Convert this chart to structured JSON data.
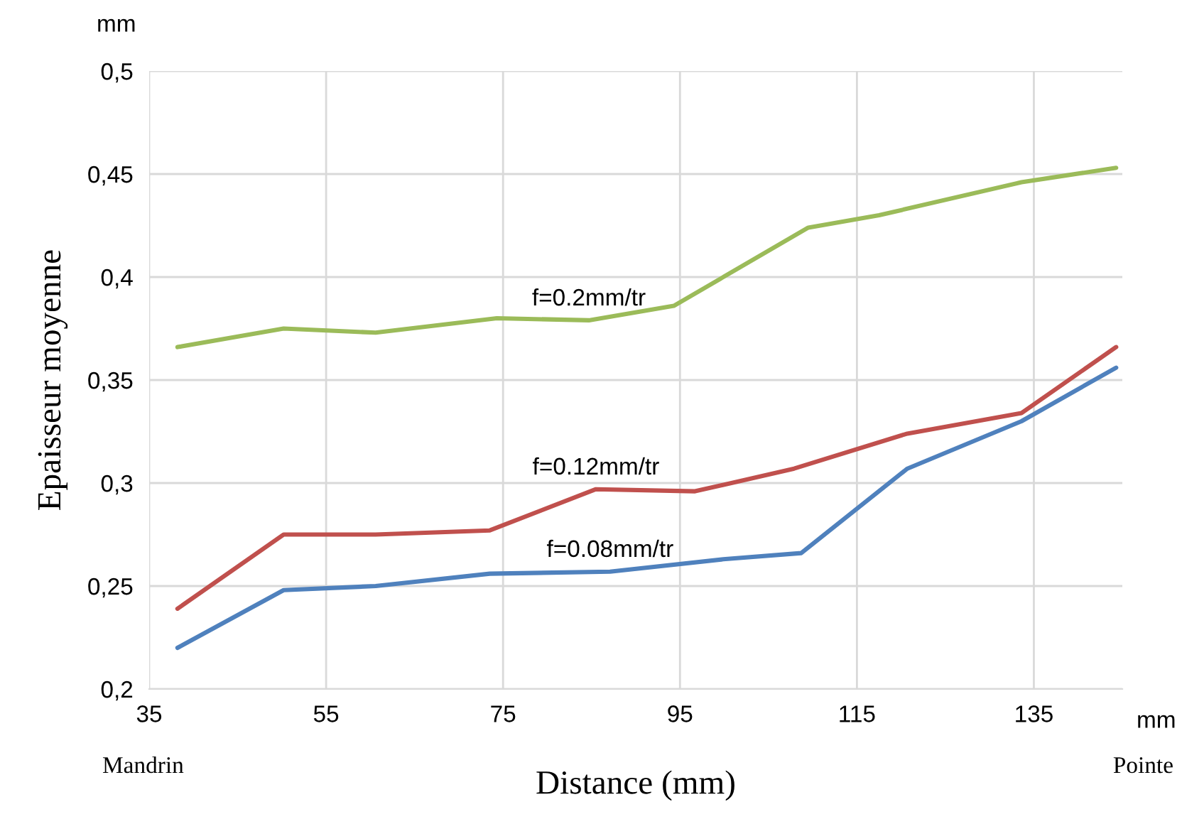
{
  "chart_data": {
    "type": "line",
    "xlabel": "Distance (mm)",
    "ylabel": "Epaisseur moyenne",
    "xlim": [
      35,
      145
    ],
    "xticks": [
      35,
      55,
      75,
      95,
      115,
      135
    ],
    "ylim": [
      0.2,
      0.5
    ],
    "yticks": [
      {
        "value": 0.2,
        "label": "0,2"
      },
      {
        "value": 0.25,
        "label": "0,25"
      },
      {
        "value": 0.3,
        "label": "0,3"
      },
      {
        "value": 0.35,
        "label": "0,35"
      },
      {
        "value": 0.4,
        "label": "0,4"
      },
      {
        "value": 0.45,
        "label": "0,45"
      },
      {
        "value": 0.5,
        "label": "0,5"
      }
    ],
    "grid": true,
    "line_style": "solid",
    "series": [
      {
        "name": "f=0.2mm/tr",
        "color": "#9bbb59",
        "x": [
          38.2,
          50.2,
          60.6,
          74.3,
          84.7,
          94.3,
          109.5,
          117.5,
          133.6,
          144.3
        ],
        "values": [
          0.366,
          0.375,
          0.373,
          0.38,
          0.379,
          0.386,
          0.424,
          0.43,
          0.446,
          0.453
        ]
      },
      {
        "name": "f=0.12mm/tr",
        "color": "#c0504d",
        "x": [
          38.2,
          50.2,
          60.6,
          73.5,
          85.5,
          96.7,
          107.9,
          120.7,
          133.6,
          144.3
        ],
        "values": [
          0.239,
          0.275,
          0.275,
          0.277,
          0.297,
          0.296,
          0.307,
          0.324,
          0.334,
          0.366
        ]
      },
      {
        "name": "f=0.08mm/tr",
        "color": "#4f81bd",
        "x": [
          38.2,
          50.2,
          60.6,
          73.5,
          87.1,
          99.9,
          108.7,
          120.7,
          133.6,
          144.3
        ],
        "values": [
          0.22,
          0.248,
          0.25,
          0.256,
          0.257,
          0.263,
          0.266,
          0.307,
          0.33,
          0.356
        ]
      }
    ],
    "annotations": [
      "mm",
      "mm",
      "Mandrin",
      "Pointe"
    ]
  }
}
